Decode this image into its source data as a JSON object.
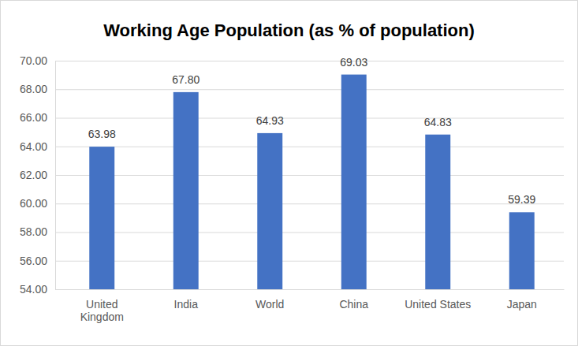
{
  "chart_data": {
    "type": "bar",
    "title": "Working Age Population (as % of population)",
    "categories": [
      "United Kingdom",
      "India",
      "World",
      "China",
      "United States",
      "Japan"
    ],
    "values": [
      63.98,
      67.8,
      64.93,
      69.03,
      64.83,
      59.39
    ],
    "value_labels": [
      "63.98",
      "67.80",
      "64.93",
      "69.03",
      "64.83",
      "59.39"
    ],
    "color": "#4472c4",
    "ylim": [
      54,
      70
    ],
    "yticks": [
      {
        "value": 54,
        "label": "54.00"
      },
      {
        "value": 56,
        "label": "56.00"
      },
      {
        "value": 58,
        "label": "58.00"
      },
      {
        "value": 60,
        "label": "60.00"
      },
      {
        "value": 62,
        "label": "62.00"
      },
      {
        "value": 64,
        "label": "64.00"
      },
      {
        "value": 66,
        "label": "66.00"
      },
      {
        "value": 68,
        "label": "68.00"
      },
      {
        "value": 70,
        "label": "70.00"
      }
    ],
    "grid": true,
    "data_labels": true
  }
}
